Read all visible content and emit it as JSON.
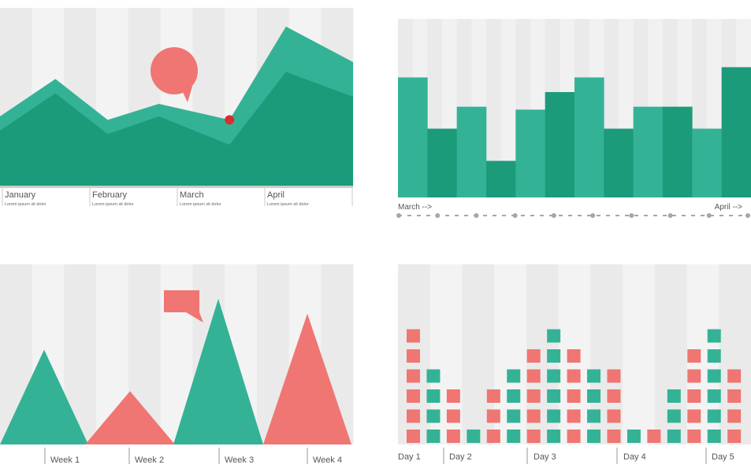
{
  "colors": {
    "teal_light": "#34b296",
    "teal_dark": "#1c9b7b",
    "coral": "#ef7672",
    "red_dot": "#d7302e",
    "stripe_light": "#f3f3f3",
    "stripe_dark": "#eaeaea",
    "axis": "#c8c8c8",
    "text": "#555555"
  },
  "chart_data": [
    {
      "type": "area",
      "categories": [
        "January",
        "February",
        "March",
        "April"
      ],
      "category_sublabels": [
        "Lorem ipsum sit dolor",
        "Lorem ipsum sit dolor",
        "Lorem ipsum sit dolor",
        "Lorem ipsum sit dolor"
      ],
      "x": [
        0,
        1.57,
        3.05,
        4.5,
        6.5,
        8.1,
        10.0
      ],
      "series": [
        {
          "color": "#34b296",
          "values": [
            78,
            120,
            74,
            92,
            74,
            179,
            139
          ]
        },
        {
          "color": "#1c9b7b",
          "values": [
            62,
            104,
            58,
            78,
            46,
            128,
            100
          ]
        }
      ],
      "highlight_x": 6.5,
      "ylim": [
        0,
        200
      ],
      "grid": "vertical stripes",
      "legend": "none"
    },
    {
      "type": "bar",
      "axis_start_label": "March -->",
      "axis_end_label": "April -->",
      "values": [
        82,
        47,
        62,
        25,
        60,
        72,
        82,
        47,
        62,
        62,
        47,
        89
      ],
      "bar_colors": [
        "#34b296",
        "#1c9b7b",
        "#34b296",
        "#1c9b7b",
        "#34b296",
        "#1c9b7b",
        "#34b296",
        "#1c9b7b",
        "#34b296",
        "#1c9b7b",
        "#34b296",
        "#1c9b7b"
      ],
      "ylim": [
        0,
        122
      ],
      "timeline_points": 10,
      "legend": "none"
    },
    {
      "type": "area",
      "shape": "triangles",
      "categories": [
        "Week 1",
        "Week 2",
        "Week 3",
        "Week 4"
      ],
      "values": [
        121,
        68,
        186,
        167
      ],
      "colors": [
        "#34b296",
        "#ef7672",
        "#34b296",
        "#ef7672"
      ],
      "highlight_index": 2,
      "ylim": [
        0,
        230
      ],
      "legend": "none"
    },
    {
      "type": "bar",
      "style": "stacked squares",
      "day_labels": [
        "Day 1",
        "Day 2",
        "Day 3",
        "Day 4",
        "Day 5"
      ],
      "values": [
        6,
        4,
        3,
        1,
        3,
        4,
        5,
        6,
        5,
        4,
        4,
        1,
        1,
        3,
        5,
        6,
        4
      ],
      "square_colors": [
        "#ef7672",
        "#34b296",
        "#ef7672",
        "#34b296",
        "#ef7672",
        "#34b296",
        "#ef7672",
        "#34b296",
        "#ef7672",
        "#34b296",
        "#ef7672",
        "#34b296",
        "#ef7672",
        "#34b296",
        "#ef7672",
        "#34b296",
        "#ef7672"
      ],
      "ylim": [
        0,
        9
      ],
      "legend": "none"
    }
  ]
}
